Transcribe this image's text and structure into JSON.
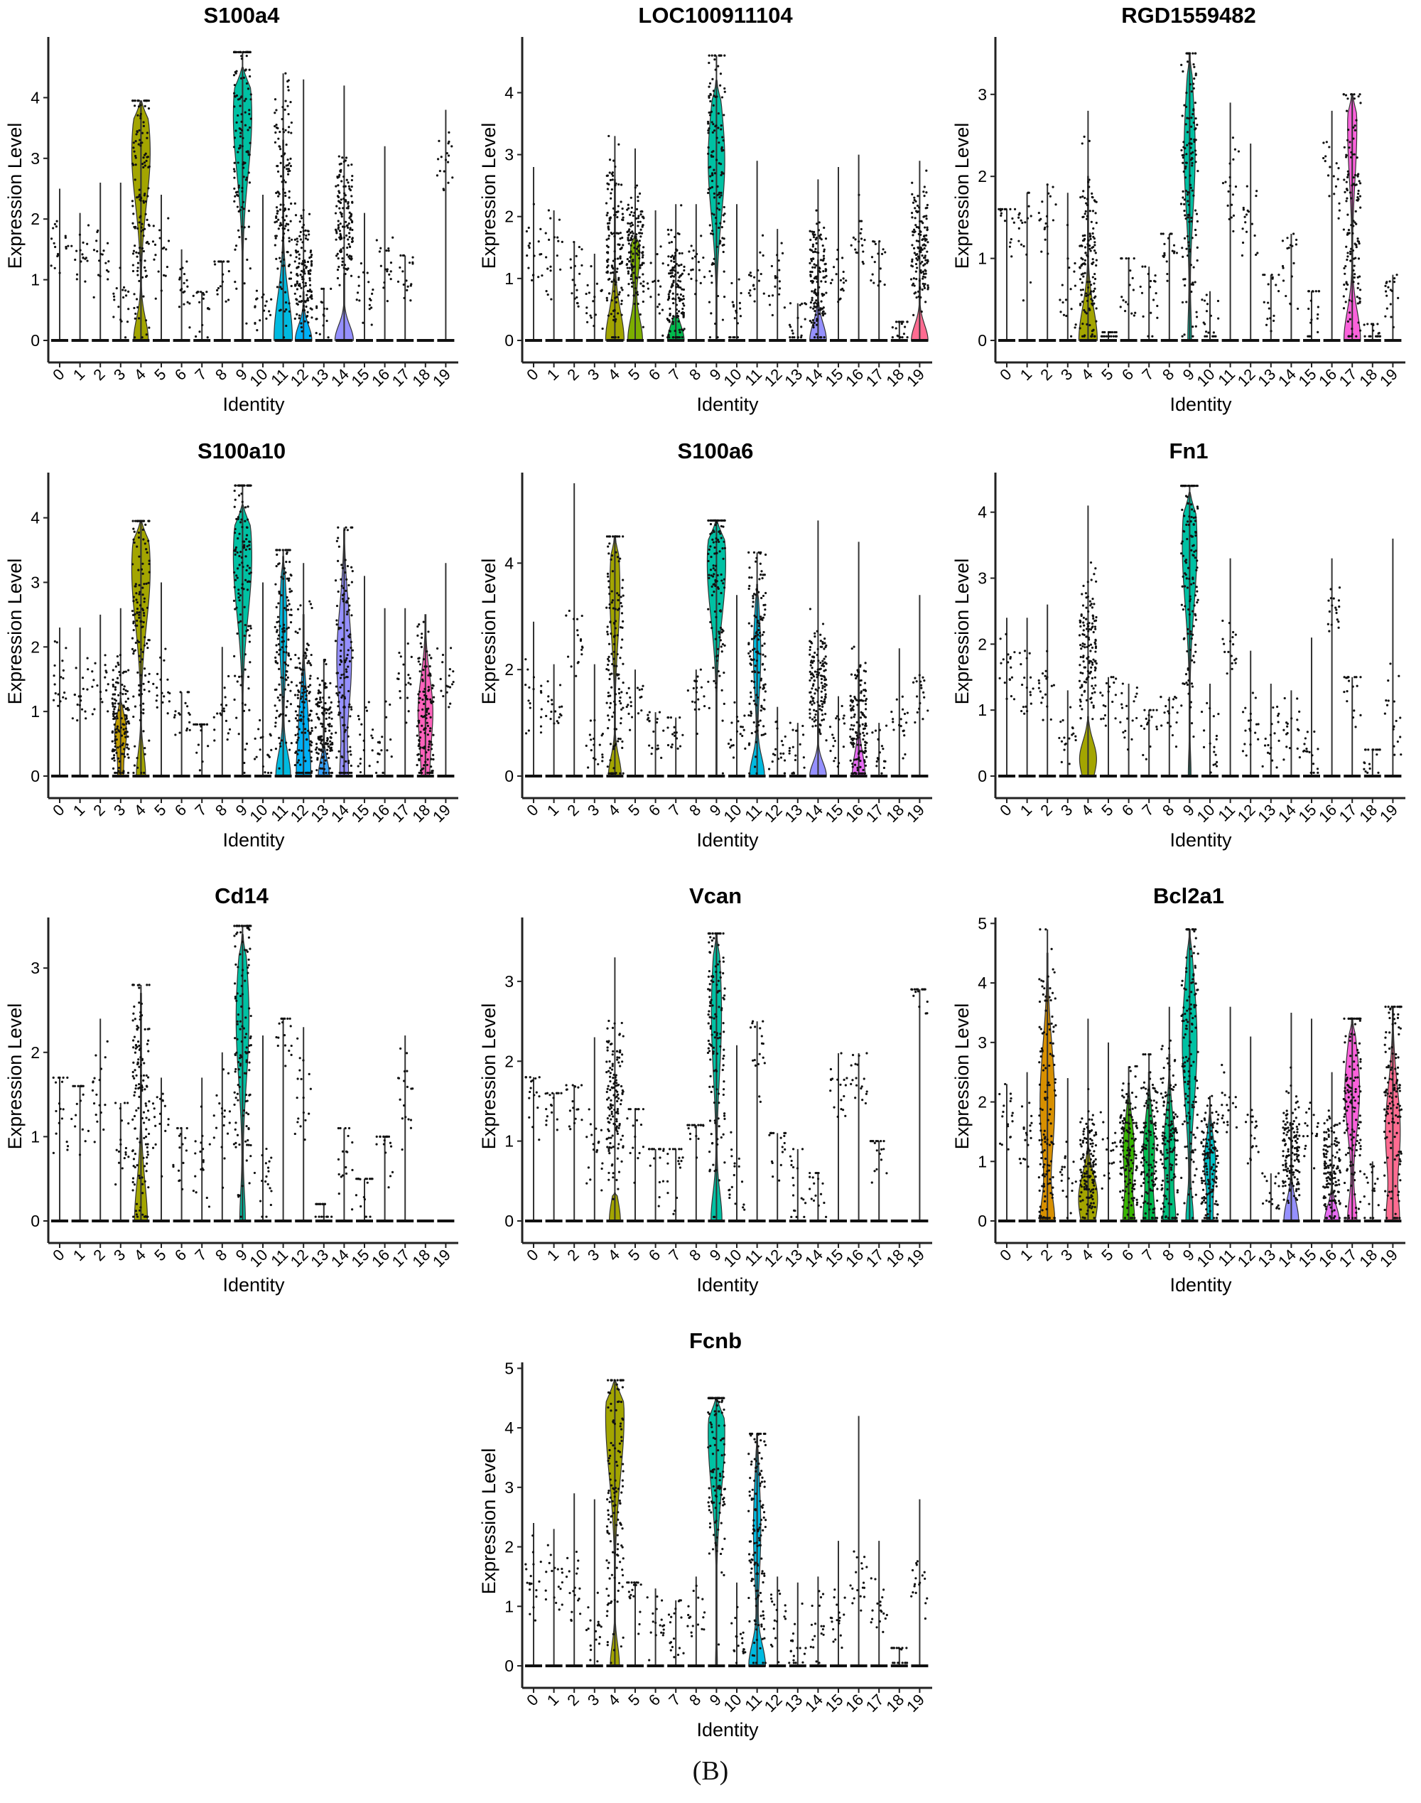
{
  "caption": "(B)",
  "palette": [
    "#F8766D",
    "#EA8331",
    "#D89000",
    "#C09B00",
    "#A3A500",
    "#7CAE00",
    "#39B600",
    "#00BB4E",
    "#00BF7D",
    "#00C1A3",
    "#00BFC4",
    "#00BAE0",
    "#00B0F6",
    "#35A2FF",
    "#9590FF",
    "#C77CFF",
    "#E76BF3",
    "#FA62DB",
    "#FF62BC",
    "#FF6C91"
  ],
  "chart_data": [
    {
      "type": "violin",
      "title": "S100a4",
      "xlabel": "Identity",
      "ylabel": "Expression Level",
      "categories": [
        "0",
        "1",
        "2",
        "3",
        "4",
        "5",
        "6",
        "7",
        "8",
        "9",
        "10",
        "11",
        "12",
        "13",
        "14",
        "15",
        "16",
        "17",
        "18",
        "19"
      ],
      "ylim": [
        0,
        5
      ],
      "yticks": [
        0,
        1,
        2,
        3,
        4
      ],
      "max_values": [
        2.5,
        2.1,
        2.6,
        2.6,
        3.95,
        2.4,
        1.5,
        0.8,
        1.3,
        4.75,
        2.4,
        4.4,
        4.3,
        0.85,
        4.2,
        2.1,
        3.2,
        1.4,
        0,
        3.8
      ],
      "dot_centers": [
        1.5,
        1.4,
        1.4,
        0.6,
        2.5,
        1.4,
        0.9,
        0.65,
        1.1,
        3.7,
        0.5,
        2.3,
        1.0,
        0.4,
        2.0,
        0.8,
        1.2,
        1.2,
        0,
        3.0
      ],
      "violins": [
        {
          "c": 4,
          "top": 3.95,
          "peak": 3.1,
          "w": 1.0,
          "b": 0.8
        },
        {
          "c": 9,
          "top": 4.5,
          "peak": 3.7,
          "w": 1.0,
          "b": 0
        },
        {
          "c": 11,
          "top": 3.3,
          "peak": 0,
          "w": 1.0,
          "b": 0
        },
        {
          "c": 12,
          "top": 0.8,
          "peak": 0,
          "w": 0.9,
          "b": 0
        },
        {
          "c": 14,
          "top": 1.1,
          "peak": 0,
          "w": 1.0,
          "b": 0
        }
      ]
    },
    {
      "type": "violin",
      "title": "LOC100911104",
      "xlabel": "Identity",
      "ylabel": "Expression Level",
      "categories": [
        "0",
        "1",
        "2",
        "3",
        "4",
        "5",
        "6",
        "7",
        "8",
        "9",
        "10",
        "11",
        "12",
        "13",
        "14",
        "15",
        "16",
        "17",
        "18",
        "19"
      ],
      "ylim": [
        0,
        4.9
      ],
      "yticks": [
        0,
        1,
        2,
        3,
        4
      ],
      "max_values": [
        2.8,
        2.1,
        1.6,
        1.4,
        3.3,
        3.1,
        2.1,
        2.2,
        2.2,
        4.6,
        2.2,
        2.9,
        1.8,
        0.6,
        2.6,
        2.8,
        3.0,
        1.6,
        0.3,
        2.9
      ],
      "dot_centers": [
        1.6,
        1.4,
        1.0,
        0.6,
        1.5,
        1.5,
        0.8,
        0.8,
        1.2,
        2.8,
        0.5,
        1.2,
        1.0,
        0.3,
        1.0,
        1.0,
        1.5,
        1.2,
        0.2,
        1.5
      ],
      "violins": [
        {
          "c": 4,
          "top": 2.6,
          "peak": 0,
          "w": 0.7,
          "b": 0.3
        },
        {
          "c": 5,
          "top": 1.7,
          "peak": 1.4,
          "w": 0.5,
          "b": 0.8
        },
        {
          "c": 7,
          "top": 0.4,
          "peak": 0,
          "w": 0.9,
          "b": 0
        },
        {
          "c": 9,
          "top": 4.2,
          "peak": 2.9,
          "w": 0.9,
          "b": 0
        },
        {
          "c": 14,
          "top": 1.3,
          "peak": 0,
          "w": 0.9,
          "b": 0
        },
        {
          "c": 19,
          "top": 1.0,
          "peak": 0,
          "w": 0.9,
          "b": 0
        }
      ]
    },
    {
      "type": "violin",
      "title": "RGD1559482",
      "xlabel": "Identity",
      "ylabel": "Expression Level",
      "categories": [
        "0",
        "1",
        "2",
        "3",
        "4",
        "5",
        "6",
        "7",
        "8",
        "9",
        "10",
        "11",
        "12",
        "13",
        "14",
        "15",
        "16",
        "17",
        "18",
        "19"
      ],
      "ylim": [
        0,
        3.7
      ],
      "yticks": [
        0,
        1,
        2,
        3
      ],
      "max_values": [
        1.6,
        1.8,
        1.9,
        1.8,
        2.8,
        0.1,
        1.0,
        0.9,
        1.3,
        3.5,
        0.6,
        2.9,
        2.4,
        0.8,
        1.3,
        0.6,
        2.8,
        3.0,
        0.2,
        0.8
      ],
      "dot_centers": [
        1.5,
        1.3,
        1.5,
        0.7,
        1.0,
        0,
        0.8,
        0.7,
        1.0,
        2.0,
        0.3,
        2.0,
        1.5,
        0.5,
        1.0,
        0.4,
        2.0,
        1.5,
        0.1,
        0.5
      ],
      "violins": [
        {
          "c": 4,
          "top": 2.0,
          "peak": 0,
          "w": 0.6,
          "b": 0.4
        },
        {
          "c": 9,
          "top": 3.5,
          "peak": 2.3,
          "w": 0.6,
          "b": 0.2
        },
        {
          "c": 17,
          "top": 3.0,
          "peak": 2.6,
          "w": 0.5,
          "b": 0.9
        }
      ]
    },
    {
      "type": "violin",
      "title": "S100a10",
      "xlabel": "Identity",
      "ylabel": "Expression Level",
      "categories": [
        "0",
        "1",
        "2",
        "3",
        "4",
        "5",
        "6",
        "7",
        "8",
        "9",
        "10",
        "11",
        "12",
        "13",
        "14",
        "15",
        "16",
        "17",
        "18",
        "19"
      ],
      "ylim": [
        0,
        4.7
      ],
      "yticks": [
        0,
        1,
        2,
        3,
        4
      ],
      "max_values": [
        2.3,
        2.3,
        2.5,
        2.6,
        3.95,
        3.0,
        1.3,
        0.8,
        2.0,
        4.5,
        3.0,
        3.5,
        3.3,
        1.8,
        3.85,
        3.1,
        2.6,
        2.6,
        2.5,
        3.3
      ],
      "dot_centers": [
        1.5,
        1.4,
        1.4,
        0.8,
        2.5,
        1.5,
        0.9,
        0.7,
        1.0,
        3.3,
        0.4,
        2.3,
        1.0,
        0.8,
        1.8,
        0.5,
        0.5,
        1.5,
        1.0,
        1.5
      ],
      "violins": [
        {
          "c": 3,
          "top": 1.2,
          "peak": 0.7,
          "w": 0.6,
          "b": 0.3
        },
        {
          "c": 4,
          "top": 3.95,
          "peak": 3.2,
          "w": 1.0,
          "b": 0.5
        },
        {
          "c": 9,
          "top": 4.2,
          "peak": 3.4,
          "w": 1.0,
          "b": 0
        },
        {
          "c": 11,
          "top": 3.4,
          "peak": 2.3,
          "w": 0.4,
          "b": 0.8
        },
        {
          "c": 12,
          "top": 2.5,
          "peak": 0.8,
          "w": 0.5,
          "b": 0.6
        },
        {
          "c": 13,
          "top": 1.0,
          "peak": 0,
          "w": 0.6,
          "b": 0
        },
        {
          "c": 14,
          "top": 3.8,
          "peak": 1.8,
          "w": 0.8,
          "b": 0.4
        },
        {
          "c": 18,
          "top": 2.5,
          "peak": 1.0,
          "w": 0.8,
          "b": 0.3
        }
      ]
    },
    {
      "type": "violin",
      "title": "S100a6",
      "xlabel": "Identity",
      "ylabel": "Expression Level",
      "categories": [
        "0",
        "1",
        "2",
        "3",
        "4",
        "5",
        "6",
        "7",
        "8",
        "9",
        "10",
        "11",
        "12",
        "13",
        "14",
        "15",
        "16",
        "17",
        "18",
        "19"
      ],
      "ylim": [
        0,
        5.7
      ],
      "yticks": [
        0,
        2,
        4
      ],
      "max_values": [
        2.9,
        2.1,
        5.5,
        2.1,
        4.5,
        2.0,
        1.2,
        1.1,
        2.0,
        4.8,
        3.4,
        4.2,
        1.3,
        1.0,
        4.8,
        1.5,
        4.4,
        1.0,
        2.4,
        3.4
      ],
      "dot_centers": [
        1.5,
        1.4,
        2.5,
        0.6,
        2.5,
        1.5,
        0.8,
        0.8,
        1.5,
        4.0,
        0.7,
        2.3,
        0.7,
        0.5,
        1.8,
        0.7,
        1.0,
        0.5,
        1.0,
        1.5
      ],
      "violins": [
        {
          "c": 4,
          "top": 4.5,
          "peak": 3.5,
          "w": 0.55,
          "b": 0.7
        },
        {
          "c": 9,
          "top": 4.8,
          "peak": 4.0,
          "w": 1.0,
          "b": 0
        },
        {
          "c": 11,
          "top": 3.6,
          "peak": 2.3,
          "w": 0.4,
          "b": 0.8
        },
        {
          "c": 14,
          "top": 1.2,
          "peak": 0,
          "w": 0.9,
          "b": 0
        },
        {
          "c": 16,
          "top": 2.0,
          "peak": 0,
          "w": 0.7,
          "b": 0
        }
      ]
    },
    {
      "type": "violin",
      "title": "Fn1",
      "xlabel": "Identity",
      "ylabel": "Expression Level",
      "categories": [
        "0",
        "1",
        "2",
        "3",
        "4",
        "5",
        "6",
        "7",
        "8",
        "9",
        "10",
        "11",
        "12",
        "13",
        "14",
        "15",
        "16",
        "17",
        "18",
        "19"
      ],
      "ylim": [
        0,
        4.6
      ],
      "yticks": [
        0,
        1,
        2,
        3,
        4
      ],
      "max_values": [
        2.4,
        2.4,
        2.6,
        1.3,
        4.1,
        1.5,
        1.4,
        1.0,
        1.2,
        4.4,
        1.4,
        3.3,
        1.9,
        1.4,
        1.3,
        2.1,
        3.3,
        1.5,
        0.4,
        3.6
      ],
      "dot_centers": [
        1.7,
        1.4,
        1.4,
        0.6,
        2.0,
        1.2,
        0.9,
        0.8,
        1.0,
        3.5,
        0.5,
        2.0,
        0.8,
        0.5,
        0.8,
        0.3,
        2.5,
        1.4,
        0.3,
        0.9
      ],
      "violins": [
        {
          "c": 4,
          "top": 0.9,
          "peak": 0.3,
          "w": 0.7,
          "b": 0.3
        },
        {
          "c": 9,
          "top": 4.3,
          "peak": 3.5,
          "w": 0.8,
          "b": 0.15
        }
      ]
    },
    {
      "type": "violin",
      "title": "Cd14",
      "xlabel": "Identity",
      "ylabel": "Expression Level",
      "categories": [
        "0",
        "1",
        "2",
        "3",
        "4",
        "5",
        "6",
        "7",
        "8",
        "9",
        "10",
        "11",
        "12",
        "13",
        "14",
        "15",
        "16",
        "17",
        "18",
        "19"
      ],
      "ylim": [
        0,
        3.6
      ],
      "yticks": [
        0,
        1,
        2,
        3
      ],
      "max_values": [
        1.7,
        1.6,
        2.4,
        1.4,
        2.8,
        1.7,
        1.1,
        1.7,
        2.0,
        3.5,
        2.2,
        2.4,
        2.3,
        0.2,
        1.1,
        0.5,
        1.0,
        2.2,
        0,
        0
      ],
      "dot_centers": [
        1.5,
        1.4,
        1.5,
        1.0,
        1.3,
        1.2,
        0.8,
        0.7,
        1.2,
        2.4,
        0.5,
        2.3,
        1.5,
        0.2,
        0.9,
        0.5,
        1.0,
        1.5,
        0,
        0
      ],
      "violins": [
        {
          "c": 4,
          "top": 2.7,
          "peak": 0,
          "w": 0.45,
          "b": 0.25
        },
        {
          "c": 9,
          "top": 3.4,
          "peak": 2.4,
          "w": 0.7,
          "b": 0.3
        }
      ]
    },
    {
      "type": "violin",
      "title": "Vcan",
      "xlabel": "Identity",
      "ylabel": "Expression Level",
      "categories": [
        "0",
        "1",
        "2",
        "3",
        "4",
        "5",
        "6",
        "7",
        "8",
        "9",
        "10",
        "11",
        "12",
        "13",
        "14",
        "15",
        "16",
        "17",
        "18",
        "19"
      ],
      "ylim": [
        0,
        3.8
      ],
      "yticks": [
        0,
        1,
        2,
        3
      ],
      "max_values": [
        1.8,
        1.6,
        1.7,
        2.3,
        3.3,
        1.4,
        0.9,
        0.9,
        1.2,
        3.6,
        2.2,
        2.5,
        1.1,
        0.9,
        0.6,
        2.1,
        2.1,
        1.0,
        0,
        2.9
      ],
      "dot_centers": [
        1.7,
        1.5,
        1.5,
        0.8,
        1.5,
        1.2,
        0.8,
        0.7,
        1.2,
        2.5,
        0.5,
        2.2,
        1.0,
        0.5,
        0.5,
        1.5,
        1.8,
        1.0,
        0,
        2.9
      ],
      "violins": [
        {
          "c": 4,
          "top": 0.35,
          "peak": 0,
          "w": 0.6,
          "b": 0
        },
        {
          "c": 9,
          "top": 3.6,
          "peak": 2.6,
          "w": 0.55,
          "b": 0.6
        }
      ]
    },
    {
      "type": "violin",
      "title": "Bcl2a1",
      "xlabel": "Identity",
      "ylabel": "Expression Level",
      "categories": [
        "0",
        "1",
        "2",
        "3",
        "4",
        "5",
        "6",
        "7",
        "8",
        "9",
        "10",
        "11",
        "12",
        "13",
        "14",
        "15",
        "16",
        "17",
        "18",
        "19"
      ],
      "ylim": [
        0,
        5.1
      ],
      "yticks": [
        0,
        1,
        2,
        3,
        4,
        5
      ],
      "max_values": [
        2.3,
        2.5,
        4.9,
        2.4,
        3.4,
        3.0,
        2.6,
        2.8,
        3.6,
        4.9,
        2.1,
        3.6,
        3.1,
        0.8,
        3.5,
        3.4,
        2.5,
        3.4,
        1.0,
        3.6
      ],
      "dot_centers": [
        1.7,
        1.5,
        2.0,
        0.8,
        0.8,
        1.2,
        1.2,
        1.3,
        1.3,
        3.0,
        0.9,
        2.0,
        1.5,
        0.5,
        1.2,
        1.5,
        0.8,
        2.0,
        0.5,
        2.0
      ],
      "violins": [
        {
          "c": 2,
          "top": 4.5,
          "peak": 2.0,
          "w": 0.8,
          "b": 0.7
        },
        {
          "c": 4,
          "top": 1.6,
          "peak": 0.5,
          "w": 0.8,
          "b": 0.5
        },
        {
          "c": 6,
          "top": 2.3,
          "peak": 1.2,
          "w": 0.6,
          "b": 0.6
        },
        {
          "c": 7,
          "top": 2.5,
          "peak": 1.2,
          "w": 0.6,
          "b": 0.6
        },
        {
          "c": 8,
          "top": 2.8,
          "peak": 1.2,
          "w": 0.6,
          "b": 0.6
        },
        {
          "c": 9,
          "top": 4.9,
          "peak": 3.0,
          "w": 0.8,
          "b": 0.4
        },
        {
          "c": 10,
          "top": 1.9,
          "peak": 1.0,
          "w": 0.6,
          "b": 0.3
        },
        {
          "c": 14,
          "top": 1.6,
          "peak": 0,
          "w": 0.8,
          "b": 0
        },
        {
          "c": 16,
          "top": 0.8,
          "peak": 0,
          "w": 0.8,
          "b": 0
        },
        {
          "c": 17,
          "top": 3.4,
          "peak": 2.2,
          "w": 0.8,
          "b": 0.5
        },
        {
          "c": 19,
          "top": 3.6,
          "peak": 1.5,
          "w": 0.8,
          "b": 0.6
        }
      ]
    },
    {
      "type": "violin",
      "title": "Fcnb",
      "xlabel": "Identity",
      "ylabel": "Expression Level",
      "categories": [
        "0",
        "1",
        "2",
        "3",
        "4",
        "5",
        "6",
        "7",
        "8",
        "9",
        "10",
        "11",
        "12",
        "13",
        "14",
        "15",
        "16",
        "17",
        "18",
        "19"
      ],
      "ylim": [
        0,
        5.1
      ],
      "yticks": [
        0,
        1,
        2,
        3,
        4,
        5
      ],
      "max_values": [
        2.4,
        2.3,
        2.9,
        2.8,
        4.8,
        1.4,
        1.3,
        1.1,
        1.5,
        4.5,
        1.4,
        3.9,
        1.5,
        1.4,
        1.5,
        2.1,
        4.2,
        2.1,
        0.3,
        2.8
      ],
      "dot_centers": [
        1.5,
        1.4,
        1.3,
        0.6,
        3.0,
        1.3,
        0.8,
        0.7,
        1.0,
        3.8,
        0.4,
        2.3,
        0.7,
        0.4,
        0.6,
        0.8,
        1.5,
        1.0,
        0.2,
        1.5
      ],
      "violins": [
        {
          "c": 4,
          "top": 4.8,
          "peak": 4.2,
          "w": 1.0,
          "b": 0.5
        },
        {
          "c": 9,
          "top": 4.5,
          "peak": 3.9,
          "w": 0.9,
          "b": 0.1
        },
        {
          "c": 11,
          "top": 3.9,
          "peak": 2.3,
          "w": 0.4,
          "b": 0.9
        }
      ]
    }
  ]
}
